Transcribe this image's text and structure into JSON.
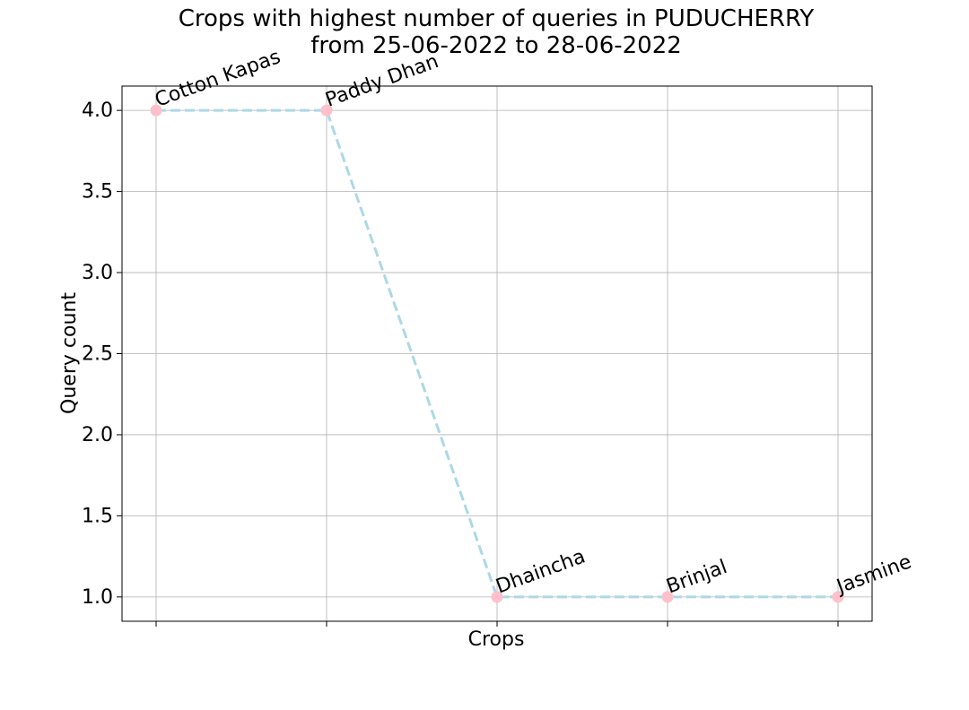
{
  "chart_data": {
    "type": "line",
    "title_line1": "Crops with highest number of queries in PUDUCHERRY",
    "title_line2": "from 25-06-2022 to 28-06-2022",
    "xlabel": "Crops",
    "ylabel": "Query count",
    "categories": [
      "Cotton Kapas",
      "Paddy Dhan",
      "Dhaincha",
      "Brinjal",
      "Jasmine"
    ],
    "values": [
      4,
      4,
      1,
      1,
      1
    ],
    "ylim": [
      0.85,
      4.15
    ],
    "yticks": [
      "1.0",
      "1.5",
      "2.0",
      "2.5",
      "3.0",
      "3.5",
      "4.0"
    ],
    "grid": true,
    "line_style": "dashed",
    "line_color": "#add8e6",
    "marker_color": "#ffc0cb"
  }
}
